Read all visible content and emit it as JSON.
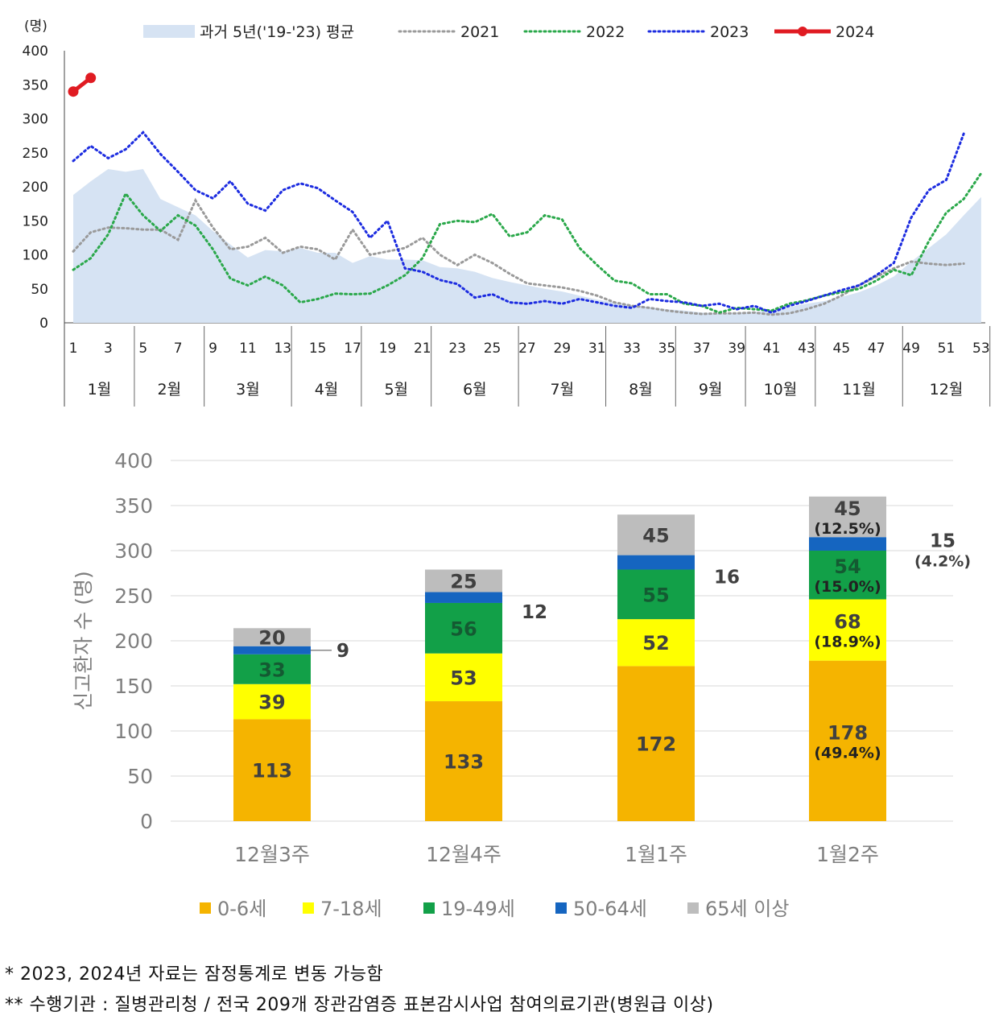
{
  "chart_data": [
    {
      "type": "line",
      "ylabel": "(명)",
      "ylim": [
        0,
        400
      ],
      "yticks": [
        "0",
        "50",
        "100",
        "150",
        "200",
        "250",
        "300",
        "350",
        "400"
      ],
      "xticks": [
        "1",
        "3",
        "5",
        "7",
        "9",
        "11",
        "13",
        "15",
        "17",
        "19",
        "21",
        "23",
        "25",
        "27",
        "29",
        "31",
        "33",
        "35",
        "37",
        "39",
        "41",
        "43",
        "45",
        "47",
        "49",
        "51",
        "53"
      ],
      "months": [
        "1월",
        "2월",
        "3월",
        "4월",
        "5월",
        "6월",
        "7월",
        "8월",
        "9월",
        "10월",
        "11월",
        "12월"
      ],
      "month_bounds": [
        0,
        4,
        8,
        13,
        17,
        21,
        26,
        31,
        35,
        39,
        43,
        48,
        53
      ],
      "legend_position": "top",
      "series": [
        {
          "name": "과거 5년('19-'23) 평균",
          "style": "area",
          "color": "#d6e3f3",
          "values": [
            188,
            208,
            226,
            222,
            226,
            182,
            170,
            158,
            135,
            115,
            96,
            107,
            105,
            110,
            103,
            103,
            88,
            98,
            93,
            93,
            92,
            82,
            80,
            75,
            66,
            60,
            55,
            50,
            46,
            40,
            34,
            30,
            26,
            23,
            20,
            18,
            15,
            14,
            15,
            16,
            18,
            23,
            28,
            32,
            38,
            45,
            55,
            68,
            90,
            110,
            130,
            158,
            185
          ]
        },
        {
          "name": "2021",
          "style": "dotted",
          "color": "#9a9a9a",
          "values": [
            105,
            133,
            140,
            139,
            137,
            137,
            122,
            180,
            140,
            108,
            112,
            125,
            103,
            112,
            108,
            93,
            137,
            100,
            105,
            110,
            125,
            100,
            85,
            100,
            88,
            72,
            58,
            55,
            52,
            47,
            40,
            30,
            25,
            22,
            18,
            15,
            13,
            14,
            14,
            15,
            12,
            14,
            20,
            28,
            40,
            55,
            68,
            80,
            90,
            87,
            85,
            87
          ]
        },
        {
          "name": "2022",
          "style": "dotted",
          "color": "#2aa84a",
          "values": [
            78,
            95,
            130,
            190,
            158,
            135,
            158,
            143,
            108,
            65,
            55,
            68,
            55,
            30,
            35,
            43,
            42,
            43,
            55,
            70,
            95,
            145,
            150,
            148,
            160,
            127,
            133,
            158,
            152,
            110,
            85,
            62,
            58,
            42,
            42,
            28,
            25,
            15,
            22,
            20,
            18,
            28,
            33,
            40,
            45,
            50,
            62,
            78,
            70,
            120,
            162,
            182,
            220
          ]
        },
        {
          "name": "2023",
          "style": "dotted",
          "color": "#1c2ce0",
          "values": [
            238,
            260,
            242,
            255,
            280,
            248,
            222,
            195,
            183,
            208,
            175,
            165,
            195,
            205,
            198,
            180,
            163,
            125,
            150,
            80,
            75,
            63,
            57,
            37,
            42,
            30,
            28,
            32,
            28,
            35,
            30,
            25,
            22,
            35,
            32,
            30,
            25,
            28,
            20,
            25,
            15,
            25,
            32,
            40,
            48,
            55,
            70,
            88,
            155,
            195,
            210,
            278
          ]
        },
        {
          "name": "2024",
          "style": "solid-marker",
          "color": "#e01b22",
          "values": [
            340,
            360
          ]
        }
      ]
    },
    {
      "type": "bar",
      "stacked": true,
      "ylabel": "신고환자 수 (명)",
      "ylim": [
        0,
        400
      ],
      "yticks": [
        "0",
        "50",
        "100",
        "150",
        "200",
        "250",
        "300",
        "350",
        "400"
      ],
      "categories": [
        "12월3주",
        "12월4주",
        "1월1주",
        "1월2주"
      ],
      "legend_position": "bottom",
      "series": [
        {
          "name": "0-6세",
          "color": "#f5b400",
          "values": [
            113,
            133,
            172,
            178
          ],
          "labels": [
            "113",
            "133",
            "172",
            "178\n(49.4%)"
          ]
        },
        {
          "name": "7-18세",
          "color": "#ffff00",
          "values": [
            39,
            53,
            52,
            68
          ],
          "labels": [
            "39",
            "53",
            "52",
            "68\n(18.9%)"
          ]
        },
        {
          "name": "19-49세",
          "color": "#12a048",
          "values": [
            33,
            56,
            55,
            54
          ],
          "labels": [
            "33",
            "56",
            "55",
            "54\n(15.0%)"
          ]
        },
        {
          "name": "50-64세",
          "color": "#1565c0",
          "values": [
            9,
            12,
            16,
            15
          ],
          "labels": [
            "9",
            "12",
            "16",
            "15\n(4.2%)"
          ]
        },
        {
          "name": "65세 이상",
          "color": "#bdbdbd",
          "values": [
            20,
            25,
            45,
            45
          ],
          "labels": [
            "20",
            "25",
            "45",
            "45\n(12.5%)"
          ]
        }
      ]
    }
  ],
  "footnotes": {
    "note1": "* 2023, 2024년 자료는 잠정통계로 변동 가능함",
    "note2": "** 수행기관 : 질병관리청 / 전국 209개 장관감염증 표본감시사업 참여의료기관(병원급 이상)"
  }
}
